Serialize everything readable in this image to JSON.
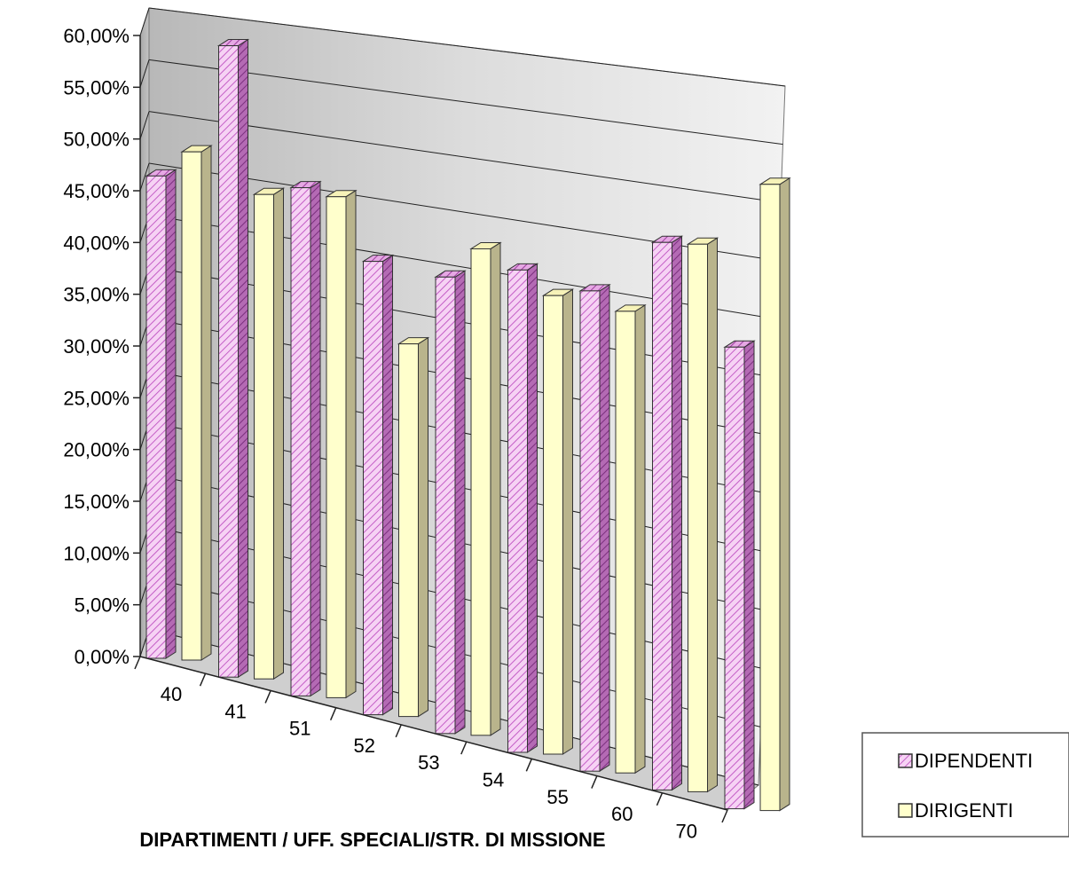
{
  "chart_data": {
    "type": "bar",
    "title": "",
    "xlabel": "DIPARTIMENTI / UFF. SPECIALI/STR. DI MISSIONE",
    "ylabel": "",
    "ylim": [
      0,
      60
    ],
    "y_tick_labels": [
      "0,00%",
      "5,00%",
      "10,00%",
      "15,00%",
      "20,00%",
      "25,00%",
      "30,00%",
      "35,00%",
      "40,00%",
      "45,00%",
      "50,00%",
      "55,00%",
      "60,00%"
    ],
    "categories": [
      "40",
      "41",
      "51",
      "52",
      "53",
      "54",
      "55",
      "60",
      "70"
    ],
    "series": [
      {
        "name": "DIPENDENTI",
        "values": [
          46.6,
          61.0,
          49.1,
          43.8,
          44.1,
          46.6,
          46.4,
          52.9,
          44.6
        ]
      },
      {
        "name": "DIRIGENTI",
        "values": [
          49.1,
          46.8,
          48.4,
          36.0,
          47.0,
          44.3,
          44.6,
          52.9,
          60.5
        ]
      }
    ],
    "grid": true,
    "legend_position": "right",
    "style": "3d-clustered-column"
  },
  "colors": {
    "dipendenti_face": "#f3c6f0",
    "dipendenti_hatch": "#c35ac4",
    "dirigenti_face": "#ffffcc",
    "dirigenti_side": "#b9b48c",
    "wall": "#c9c9c9"
  }
}
